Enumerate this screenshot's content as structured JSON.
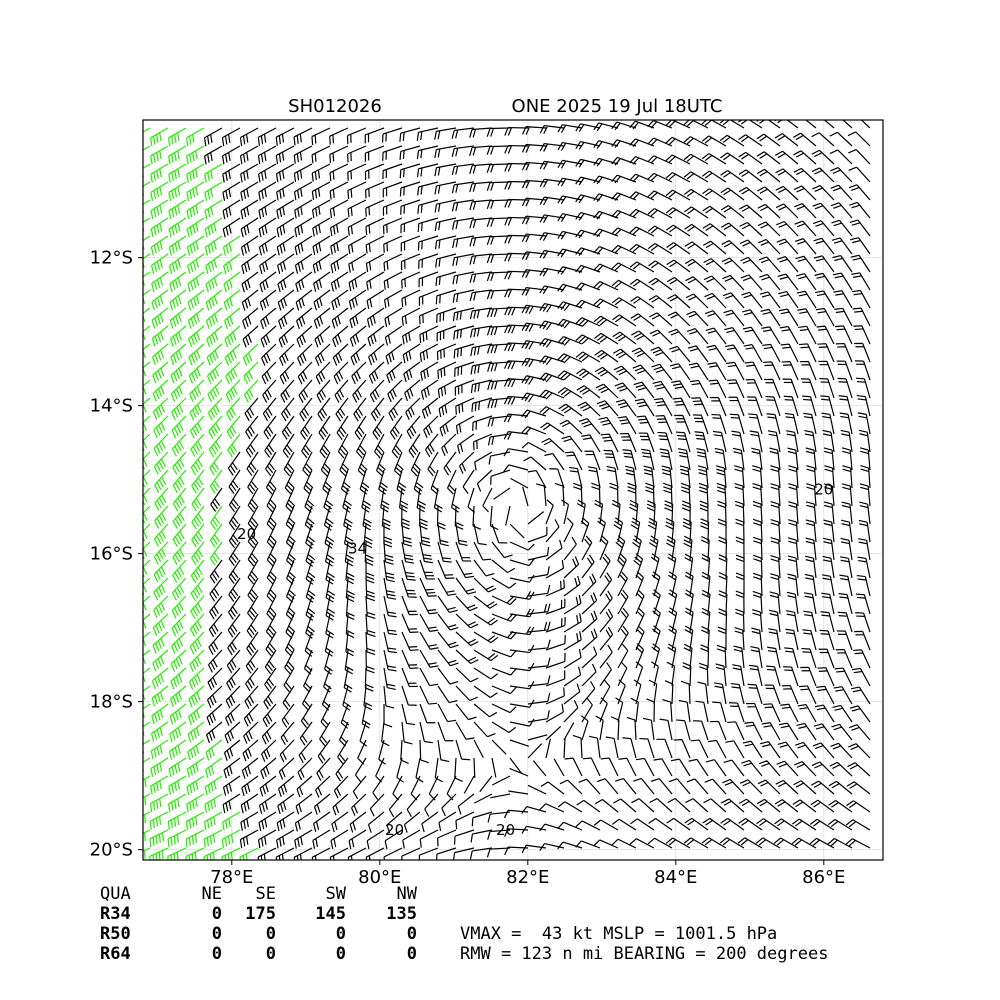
{
  "header": {
    "left_title": "SH012026",
    "right_title": "ONE 2025 19 Jul 18UTC"
  },
  "map": {
    "xlim": [
      76.8,
      86.8
    ],
    "ylim": [
      -10.14,
      -20.14
    ],
    "xticks": [
      {
        "value": 78,
        "label": "78°E"
      },
      {
        "value": 80,
        "label": "80°E"
      },
      {
        "value": 82,
        "label": "82°E"
      },
      {
        "value": 84,
        "label": "84°E"
      },
      {
        "value": 86,
        "label": "86°E"
      }
    ],
    "yticks": [
      {
        "value": -12,
        "label": "12°S"
      },
      {
        "value": -14,
        "label": "14°S"
      },
      {
        "value": -16,
        "label": "16°S"
      },
      {
        "value": -18,
        "label": "18°S"
      },
      {
        "value": -20,
        "label": "20°S"
      }
    ],
    "contour_labels": [
      {
        "text": "20",
        "lon": 78.2,
        "lat": -15.8
      },
      {
        "text": "34",
        "lon": 79.7,
        "lat": -16.0
      },
      {
        "text": "20",
        "lon": 86.0,
        "lat": -15.2
      },
      {
        "text": "20",
        "lon": 80.2,
        "lat": -19.8
      },
      {
        "text": "20",
        "lon": 81.7,
        "lat": -19.8
      }
    ]
  },
  "table": {
    "rows": [
      [
        "QUA",
        "NE",
        "SE",
        "SW",
        "NW"
      ],
      [
        "R34",
        "0",
        "175",
        "145",
        "135"
      ],
      [
        "R50",
        "0",
        "0",
        "0",
        "0"
      ],
      [
        "R64",
        "0",
        "0",
        "0",
        "0"
      ]
    ]
  },
  "stats": {
    "line1": "VMAX =  43 kt MSLP = 1001.5 hPa",
    "line2": "RMW = 123 n mi BEARING = 200 degrees"
  }
}
